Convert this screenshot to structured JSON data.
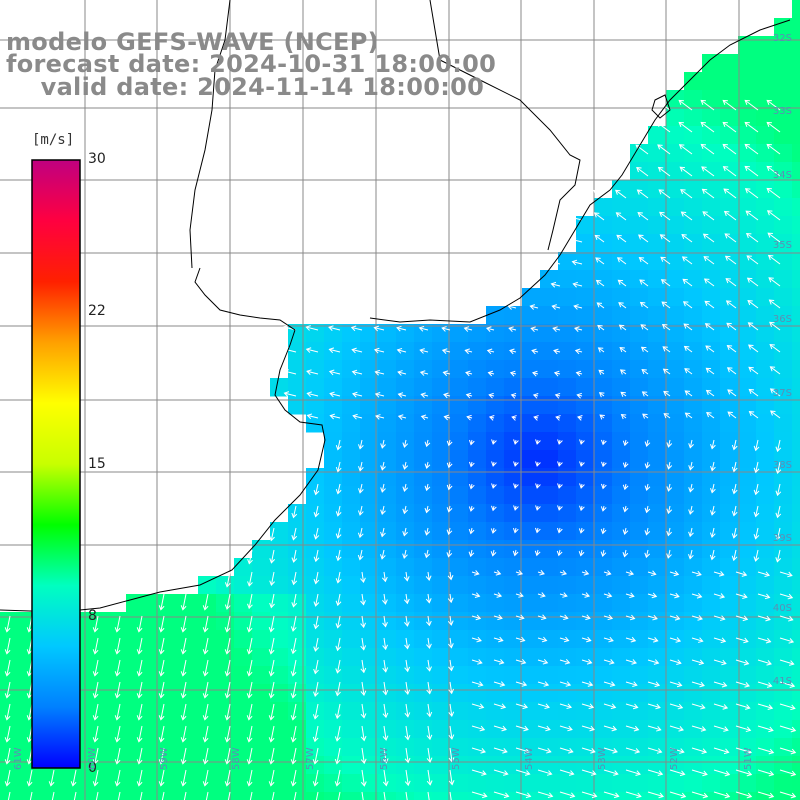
{
  "title": {
    "line1": "modelo GEFS-WAVE (NCEP)",
    "line2": "forecast date: 2024-10-31 18:00:00",
    "line3": "    valid date: 2024-11-14 18:00:00"
  },
  "colorbar": {
    "unit": "[m/s]",
    "ticks": [
      "30",
      "22",
      "15",
      "8",
      "0"
    ],
    "colors": [
      "#0000ff",
      "#0080ff",
      "#00c8ff",
      "#00ffc0",
      "#00ff00",
      "#c8ff00",
      "#ffff00",
      "#ffa000",
      "#ff2000",
      "#ff0040",
      "#c00080"
    ]
  },
  "lat_labels": [
    "32S",
    "33S",
    "34S",
    "35S",
    "36S",
    "37S",
    "38S",
    "39S",
    "40S",
    "41S"
  ],
  "lon_labels": [
    "61W",
    "60W",
    "59W",
    "58W",
    "57W",
    "56W",
    "55W",
    "54W",
    "53W",
    "52W",
    "51W"
  ],
  "field": {
    "variable": "wind speed",
    "calm_center_color": "#0010ff",
    "land_color": "#ffffff"
  }
}
